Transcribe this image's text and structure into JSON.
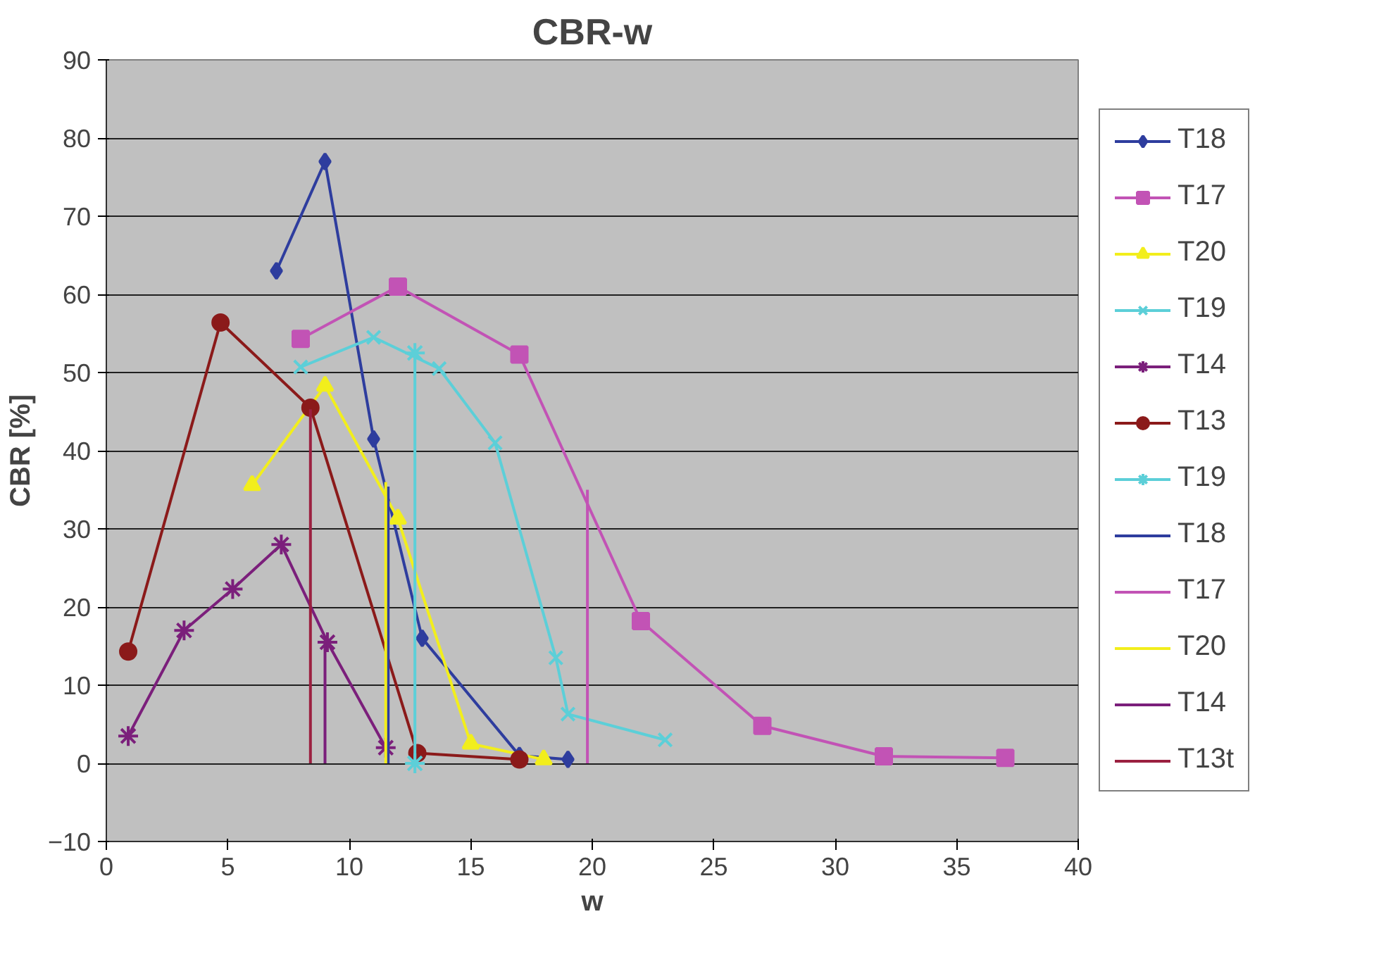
{
  "chart_data": {
    "type": "line",
    "title": "CBR-w",
    "xlabel": "w",
    "ylabel": "CBR [%]",
    "xlim": [
      0,
      40
    ],
    "xticks": [
      0,
      5,
      10,
      15,
      20,
      25,
      30,
      35,
      40
    ],
    "ylim": [
      -10,
      90
    ],
    "yticks": [
      -10,
      0,
      10,
      20,
      30,
      40,
      50,
      60,
      70,
      80,
      90
    ],
    "grid": "y",
    "legend": "right",
    "series": [
      {
        "name": "T18",
        "color": "#2e3d9e",
        "marker": "diamond",
        "x": [
          7,
          9,
          11,
          13,
          17,
          19
        ],
        "values": [
          63,
          77,
          41.5,
          16,
          1,
          0.5
        ]
      },
      {
        "name": "T17",
        "color": "#c253b5",
        "marker": "square",
        "x": [
          8,
          12,
          17,
          22,
          27,
          32,
          37
        ],
        "values": [
          54.3,
          61,
          52.3,
          18.2,
          4.8,
          0.9,
          0.7
        ]
      },
      {
        "name": "T20",
        "color": "#f2ee1c",
        "marker": "triangle",
        "x": [
          6,
          9,
          12,
          15,
          18
        ],
        "values": [
          35.6,
          48.3,
          31.3,
          2.5,
          0.5
        ]
      },
      {
        "name": "T19",
        "color": "#5ccfd8",
        "marker": "x",
        "x": [
          8,
          11,
          13.7,
          16,
          18.5,
          19,
          23
        ],
        "values": [
          50.7,
          54.5,
          50.5,
          41,
          13.5,
          6.3,
          3
        ]
      },
      {
        "name": "T14",
        "color": "#7b1f7b",
        "marker": "cross",
        "x": [
          0.9,
          3.2,
          5.2,
          7.2,
          9.1,
          11.5
        ],
        "values": [
          3.5,
          17,
          22.3,
          28,
          15.5,
          2
        ]
      },
      {
        "name": "T13",
        "color": "#8b1a1a",
        "marker": "circle",
        "x": [
          0.9,
          4.7,
          8.4,
          12.8,
          17
        ],
        "values": [
          14.3,
          56.4,
          45.5,
          1.3,
          0.5
        ]
      },
      {
        "name": "T19",
        "color": "#5ccfd8",
        "marker": "cross",
        "x": [
          12.7,
          12.7
        ],
        "values": [
          0,
          52.5
        ]
      },
      {
        "name": "T18",
        "color": "#2e3d9e",
        "x": [
          11.6,
          11.6
        ],
        "values": [
          0,
          35.4
        ]
      },
      {
        "name": "T17",
        "color": "#c253b5",
        "x": [
          19.8,
          19.8
        ],
        "values": [
          0,
          35
        ]
      },
      {
        "name": "T20",
        "color": "#f2ee1c",
        "x": [
          11.5,
          11.5
        ],
        "values": [
          0,
          36
        ]
      },
      {
        "name": "T14",
        "color": "#7b1f7b",
        "x": [
          9,
          9
        ],
        "values": [
          0,
          15.5
        ]
      },
      {
        "name": "T13t",
        "color": "#9b2040",
        "x": [
          8.4,
          8.4
        ],
        "values": [
          0,
          45.3
        ]
      }
    ]
  }
}
